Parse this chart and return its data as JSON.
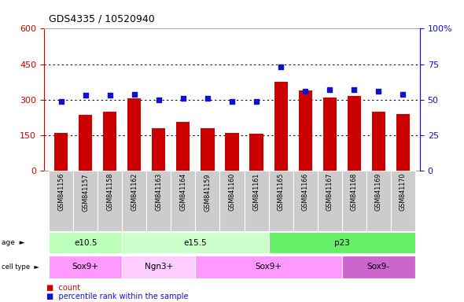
{
  "title": "GDS4335 / 10520940",
  "samples": [
    "GSM841156",
    "GSM841157",
    "GSM841158",
    "GSM841162",
    "GSM841163",
    "GSM841164",
    "GSM841159",
    "GSM841160",
    "GSM841161",
    "GSM841165",
    "GSM841166",
    "GSM841167",
    "GSM841168",
    "GSM841169",
    "GSM841170"
  ],
  "counts": [
    160,
    235,
    250,
    305,
    180,
    205,
    180,
    160,
    155,
    375,
    340,
    308,
    315,
    250,
    238
  ],
  "percentiles": [
    49,
    53,
    53,
    54,
    50,
    51,
    51,
    49,
    49,
    73,
    56,
    57,
    57,
    56,
    54
  ],
  "left_ylim": [
    0,
    600
  ],
  "left_yticks": [
    0,
    150,
    300,
    450,
    600
  ],
  "right_ylim": [
    0,
    100
  ],
  "right_yticks": [
    0,
    25,
    50,
    75,
    100
  ],
  "bar_color": "#cc0000",
  "dot_color": "#1111cc",
  "left_tick_color": "#cc0000",
  "right_tick_color": "#1111cc",
  "age_groups": [
    {
      "label": "e10.5",
      "start": 0,
      "end": 3,
      "color": "#bbffbb"
    },
    {
      "label": "e15.5",
      "start": 3,
      "end": 9,
      "color": "#ccffcc"
    },
    {
      "label": "p23",
      "start": 9,
      "end": 15,
      "color": "#66ee66"
    }
  ],
  "cell_type_groups": [
    {
      "label": "Sox9+",
      "start": 0,
      "end": 3,
      "color": "#ff99ff"
    },
    {
      "label": "Ngn3+",
      "start": 3,
      "end": 6,
      "color": "#ffccff"
    },
    {
      "label": "Sox9+",
      "start": 6,
      "end": 12,
      "color": "#ff99ff"
    },
    {
      "label": "Sox9-",
      "start": 12,
      "end": 15,
      "color": "#cc66cc"
    }
  ],
  "bg_color": "#ffffff",
  "tick_label_area_color": "#cccccc",
  "grid_color": "#000000"
}
